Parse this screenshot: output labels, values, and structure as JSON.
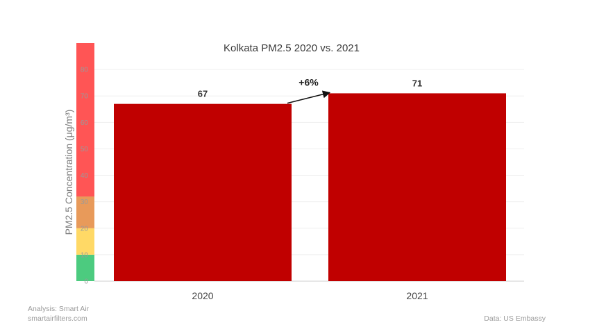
{
  "chart_data": {
    "type": "bar",
    "title": "Kolkata PM2.5 2020 vs. 2021",
    "ylabel": "PM2.5 Concentration (μg/m³)",
    "xlabel": "",
    "categories": [
      "2020",
      "2021"
    ],
    "values": [
      67,
      71
    ],
    "value_labels": [
      "67",
      "71"
    ],
    "ylim": [
      0,
      90
    ],
    "yticks": [
      0,
      10,
      20,
      30,
      40,
      50,
      60,
      70,
      80
    ],
    "grid": true,
    "bar_color": "#c00000",
    "annotation": {
      "text": "+6%",
      "from": "2020",
      "to": "2021"
    },
    "aqi_bands": [
      {
        "from": 0,
        "to": 10,
        "color": "#4ccb7f"
      },
      {
        "from": 10,
        "to": 20,
        "color": "#ffd966"
      },
      {
        "from": 20,
        "to": 32,
        "color": "#e89a5a"
      },
      {
        "from": 32,
        "to": 90,
        "color": "#ff5555"
      }
    ]
  },
  "credits": {
    "analysis": "Analysis: Smart Air",
    "site": "smartairfilters.com",
    "source": "Data: US Embassy"
  }
}
